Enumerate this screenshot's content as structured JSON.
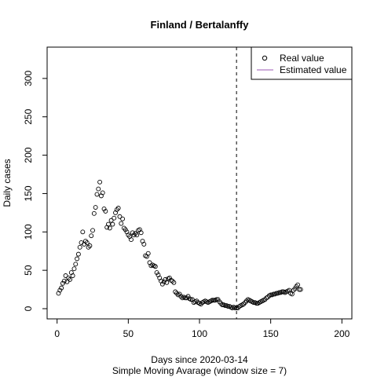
{
  "chart_data": {
    "type": "scatter",
    "title": "Finland / Bertalanffy",
    "xlabel": "Days since 2020-03-14",
    "xlabel2": "Simple Moving Avarage (window size = 7)",
    "ylabel": "Daily cases",
    "xlim": [
      -7,
      207
    ],
    "ylim": [
      -13.3,
      340.8
    ],
    "x_ticks": [
      0,
      50,
      100,
      150,
      200
    ],
    "y_ticks": [
      0,
      50,
      100,
      150,
      200,
      250,
      300
    ],
    "vline_x": 126,
    "legend": {
      "position": "top-right",
      "entries": [
        "Real value",
        "Estimated value"
      ],
      "estimated_color": "#9b59b6"
    },
    "series": [
      {
        "name": "Real value",
        "marker": "open-circle",
        "x": [
          1,
          2,
          3,
          4,
          5,
          6,
          7,
          8,
          9,
          10,
          11,
          12,
          13,
          14,
          15,
          16,
          17,
          18,
          19,
          20,
          21,
          22,
          23,
          24,
          25,
          26,
          27,
          28,
          29,
          30,
          31,
          32,
          33,
          34,
          35,
          36,
          37,
          38,
          39,
          40,
          41,
          42,
          43,
          44,
          45,
          46,
          47,
          48,
          49,
          50,
          51,
          52,
          53,
          54,
          55,
          56,
          57,
          58,
          59,
          60,
          61,
          62,
          63,
          64,
          65,
          66,
          67,
          68,
          69,
          70,
          71,
          72,
          73,
          74,
          75,
          76,
          77,
          78,
          79,
          80,
          81,
          82,
          83,
          84,
          85,
          86,
          87,
          88,
          89,
          90,
          91,
          92,
          93,
          94,
          95,
          96,
          97,
          98,
          99,
          100,
          101,
          102,
          103,
          104,
          105,
          106,
          107,
          108,
          109,
          110,
          111,
          112,
          113,
          114,
          115,
          116,
          117,
          118,
          119,
          120,
          121,
          122,
          123,
          124,
          125,
          126,
          127,
          128,
          129,
          130,
          131,
          132,
          133,
          134,
          135,
          136,
          137,
          138,
          139,
          140,
          141,
          142,
          143,
          144,
          145,
          146,
          147,
          148,
          149,
          150,
          151,
          152,
          153,
          154,
          155,
          156,
          157,
          158,
          159,
          160,
          161,
          162,
          163,
          164,
          165,
          166,
          167,
          168,
          169,
          170,
          171
        ],
        "y": [
          20,
          24,
          27,
          33,
          36,
          43,
          35,
          40,
          38,
          47,
          43,
          52,
          58,
          65,
          71,
          80,
          86,
          100,
          84,
          88,
          86,
          80,
          82,
          95,
          102,
          124,
          132,
          149,
          156,
          165,
          147,
          151,
          130,
          127,
          106,
          110,
          105,
          115,
          110,
          118,
          125,
          129,
          131,
          120,
          111,
          117,
          105,
          103,
          100,
          96,
          94,
          90,
          99,
          96,
          98,
          96,
          102,
          103,
          99,
          88,
          84,
          69,
          68,
          72,
          60,
          56,
          57,
          56,
          55,
          47,
          44,
          40,
          36,
          32,
          35,
          38,
          34,
          39,
          40,
          37,
          36,
          34,
          22,
          20,
          18,
          19,
          16,
          14,
          15,
          14,
          14,
          16,
          13,
          12,
          12,
          8,
          9,
          10,
          8,
          7,
          6,
          8,
          9,
          10,
          9,
          8,
          9,
          10,
          11,
          11,
          11,
          12,
          12,
          9,
          7,
          5,
          5,
          4,
          4,
          3,
          3,
          2,
          1,
          2,
          1,
          1,
          1,
          3,
          4,
          5,
          6,
          8,
          10,
          12,
          11,
          10,
          9,
          8,
          8,
          7,
          7,
          8,
          9,
          10,
          11,
          12,
          14,
          15,
          17,
          18,
          18,
          19,
          19,
          20,
          20,
          21,
          21,
          22,
          22,
          21,
          22,
          23,
          24,
          20,
          19,
          24,
          26,
          29,
          31,
          25,
          25
        ]
      },
      {
        "name": "Estimated value",
        "x": [],
        "y": []
      }
    ]
  }
}
